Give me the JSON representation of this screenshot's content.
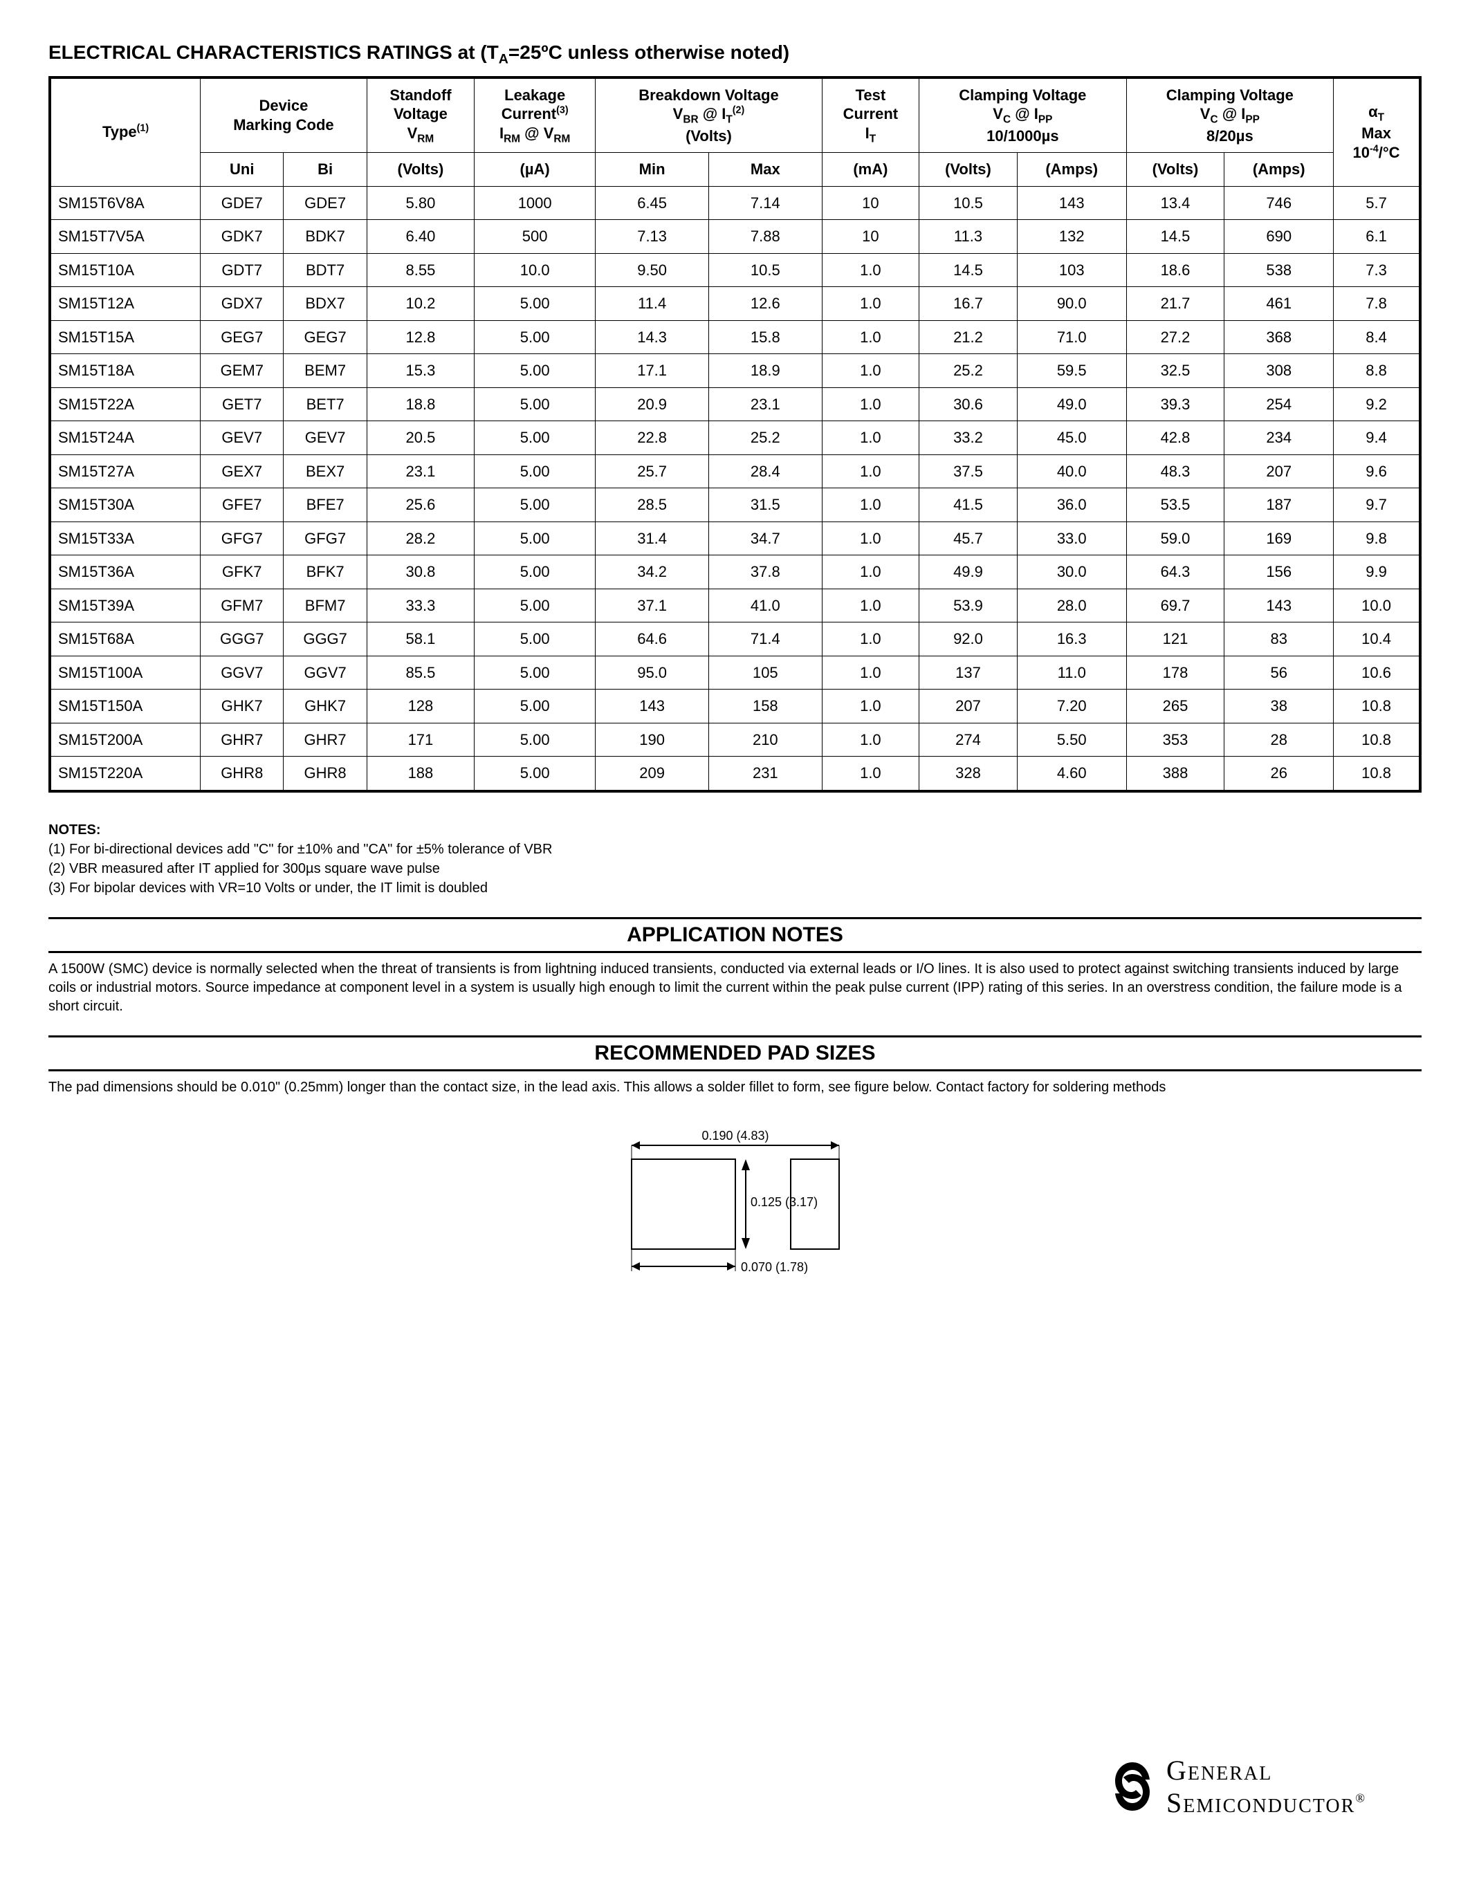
{
  "title_prefix": "ELECTRICAL CHARACTERISTICS RATINGS at (T",
  "title_sub": "A",
  "title_suffix": "=25ºC unless otherwise noted)",
  "headers": {
    "type": "Type",
    "type_sup": "(1)",
    "marking": "Device\nMarking Code",
    "marking_uni": "Uni",
    "marking_bi": "Bi",
    "standoff_l1": "Standoff",
    "standoff_l2": "Voltage",
    "standoff_l3": "V",
    "standoff_l3_sub": "RM",
    "standoff_unit": "(Volts)",
    "leakage_l1": "Leakage",
    "leakage_l2": "Current",
    "leakage_l2_sup": "(3)",
    "leakage_l3a": "I",
    "leakage_l3a_sub": "RM",
    "leakage_l3b": " @ V",
    "leakage_l3b_sub": "RM",
    "leakage_unit": "(µA)",
    "breakdown_l1": "Breakdown Voltage",
    "breakdown_l2a": "V",
    "breakdown_l2a_sub": "BR",
    "breakdown_l2b": " @ I",
    "breakdown_l2b_sub": "T",
    "breakdown_l2_sup": "(2)",
    "breakdown_l3": "(Volts)",
    "breakdown_min": "Min",
    "breakdown_max": "Max",
    "test_l1": "Test",
    "test_l2": "Current",
    "test_l3": "I",
    "test_l3_sub": "T",
    "test_unit": "(mA)",
    "clamp1_l1": "Clamping Voltage",
    "clamp1_l2a": "V",
    "clamp1_l2a_sub": "C",
    "clamp1_l2b": " @ I",
    "clamp1_l2b_sub": "PP",
    "clamp1_l3": "10/1000µs",
    "clamp2_l1": "Clamping Voltage",
    "clamp2_l2a": "V",
    "clamp2_l2a_sub": "C",
    "clamp2_l2b": " @ I",
    "clamp2_l2b_sub": "PP",
    "clamp2_l3": "8/20µs",
    "clamp_volts": "(Volts)",
    "clamp_amps": "(Amps)",
    "alpha_l1a": "α",
    "alpha_l1a_sub": "T",
    "alpha_l2": "Max",
    "alpha_l3a": "10",
    "alpha_l3a_sup": "-4",
    "alpha_l3b": "/°C"
  },
  "rows": [
    [
      "SM15T6V8A",
      "GDE7",
      "GDE7",
      "5.80",
      "1000",
      "6.45",
      "7.14",
      "10",
      "10.5",
      "143",
      "13.4",
      "746",
      "5.7"
    ],
    [
      "SM15T7V5A",
      "GDK7",
      "BDK7",
      "6.40",
      "500",
      "7.13",
      "7.88",
      "10",
      "11.3",
      "132",
      "14.5",
      "690",
      "6.1"
    ],
    [
      "SM15T10A",
      "GDT7",
      "BDT7",
      "8.55",
      "10.0",
      "9.50",
      "10.5",
      "1.0",
      "14.5",
      "103",
      "18.6",
      "538",
      "7.3"
    ],
    [
      "SM15T12A",
      "GDX7",
      "BDX7",
      "10.2",
      "5.00",
      "11.4",
      "12.6",
      "1.0",
      "16.7",
      "90.0",
      "21.7",
      "461",
      "7.8"
    ],
    [
      "SM15T15A",
      "GEG7",
      "GEG7",
      "12.8",
      "5.00",
      "14.3",
      "15.8",
      "1.0",
      "21.2",
      "71.0",
      "27.2",
      "368",
      "8.4"
    ],
    [
      "SM15T18A",
      "GEM7",
      "BEM7",
      "15.3",
      "5.00",
      "17.1",
      "18.9",
      "1.0",
      "25.2",
      "59.5",
      "32.5",
      "308",
      "8.8"
    ],
    [
      "SM15T22A",
      "GET7",
      "BET7",
      "18.8",
      "5.00",
      "20.9",
      "23.1",
      "1.0",
      "30.6",
      "49.0",
      "39.3",
      "254",
      "9.2"
    ],
    [
      "SM15T24A",
      "GEV7",
      "GEV7",
      "20.5",
      "5.00",
      "22.8",
      "25.2",
      "1.0",
      "33.2",
      "45.0",
      "42.8",
      "234",
      "9.4"
    ],
    [
      "SM15T27A",
      "GEX7",
      "BEX7",
      "23.1",
      "5.00",
      "25.7",
      "28.4",
      "1.0",
      "37.5",
      "40.0",
      "48.3",
      "207",
      "9.6"
    ],
    [
      "SM15T30A",
      "GFE7",
      "BFE7",
      "25.6",
      "5.00",
      "28.5",
      "31.5",
      "1.0",
      "41.5",
      "36.0",
      "53.5",
      "187",
      "9.7"
    ],
    [
      "SM15T33A",
      "GFG7",
      "GFG7",
      "28.2",
      "5.00",
      "31.4",
      "34.7",
      "1.0",
      "45.7",
      "33.0",
      "59.0",
      "169",
      "9.8"
    ],
    [
      "SM15T36A",
      "GFK7",
      "BFK7",
      "30.8",
      "5.00",
      "34.2",
      "37.8",
      "1.0",
      "49.9",
      "30.0",
      "64.3",
      "156",
      "9.9"
    ],
    [
      "SM15T39A",
      "GFM7",
      "BFM7",
      "33.3",
      "5.00",
      "37.1",
      "41.0",
      "1.0",
      "53.9",
      "28.0",
      "69.7",
      "143",
      "10.0"
    ],
    [
      "SM15T68A",
      "GGG7",
      "GGG7",
      "58.1",
      "5.00",
      "64.6",
      "71.4",
      "1.0",
      "92.0",
      "16.3",
      "121",
      "83",
      "10.4"
    ],
    [
      "SM15T100A",
      "GGV7",
      "GGV7",
      "85.5",
      "5.00",
      "95.0",
      "105",
      "1.0",
      "137",
      "11.0",
      "178",
      "56",
      "10.6"
    ],
    [
      "SM15T150A",
      "GHK7",
      "GHK7",
      "128",
      "5.00",
      "143",
      "158",
      "1.0",
      "207",
      "7.20",
      "265",
      "38",
      "10.8"
    ],
    [
      "SM15T200A",
      "GHR7",
      "GHR7",
      "171",
      "5.00",
      "190",
      "210",
      "1.0",
      "274",
      "5.50",
      "353",
      "28",
      "10.8"
    ],
    [
      "SM15T220A",
      "GHR8",
      "GHR8",
      "188",
      "5.00",
      "209",
      "231",
      "1.0",
      "328",
      "4.60",
      "388",
      "26",
      "10.8"
    ]
  ],
  "notes": {
    "title": "NOTES:",
    "n1": "(1) For bi-directional devices add \"C\" for ±10% and \"CA\" for ±5% tolerance of VBR",
    "n2": "(2) VBR measured after IT applied for 300µs square wave pulse",
    "n3": "(3) For bipolar devices with VR=10 Volts or under, the IT limit is doubled"
  },
  "app_notes": {
    "title": "APPLICATION NOTES",
    "body": "A 1500W (SMC) device is normally selected when the threat of transients is from lightning induced transients, conducted via external leads or I/O lines. It is also used to protect against switching transients induced by large coils or industrial motors. Source impedance at component level in a system is usually high enough to limit the current within the peak pulse current (IPP) rating of this series. In an overstress condition, the failure mode is a short circuit."
  },
  "pad": {
    "title": "RECOMMENDED PAD SIZES",
    "body": "The pad dimensions should be 0.010\" (0.25mm) longer than the contact size, in the lead axis. This allows a solder fillet to form, see figure below. Contact factory for soldering methods",
    "dim_top": "0.190 (4.83)",
    "dim_mid": "0.125 (3.17)",
    "dim_bot": "0.070 (1.78)"
  },
  "brand": {
    "top": "General",
    "bot": "Semiconductor",
    "reg": "®"
  },
  "style": {
    "border_color": "#000000",
    "bg_color": "#ffffff",
    "text_color": "#000000",
    "header_fontsize": 22,
    "cell_fontsize": 22,
    "notes_fontsize": 20,
    "section_title_fontsize": 30
  }
}
